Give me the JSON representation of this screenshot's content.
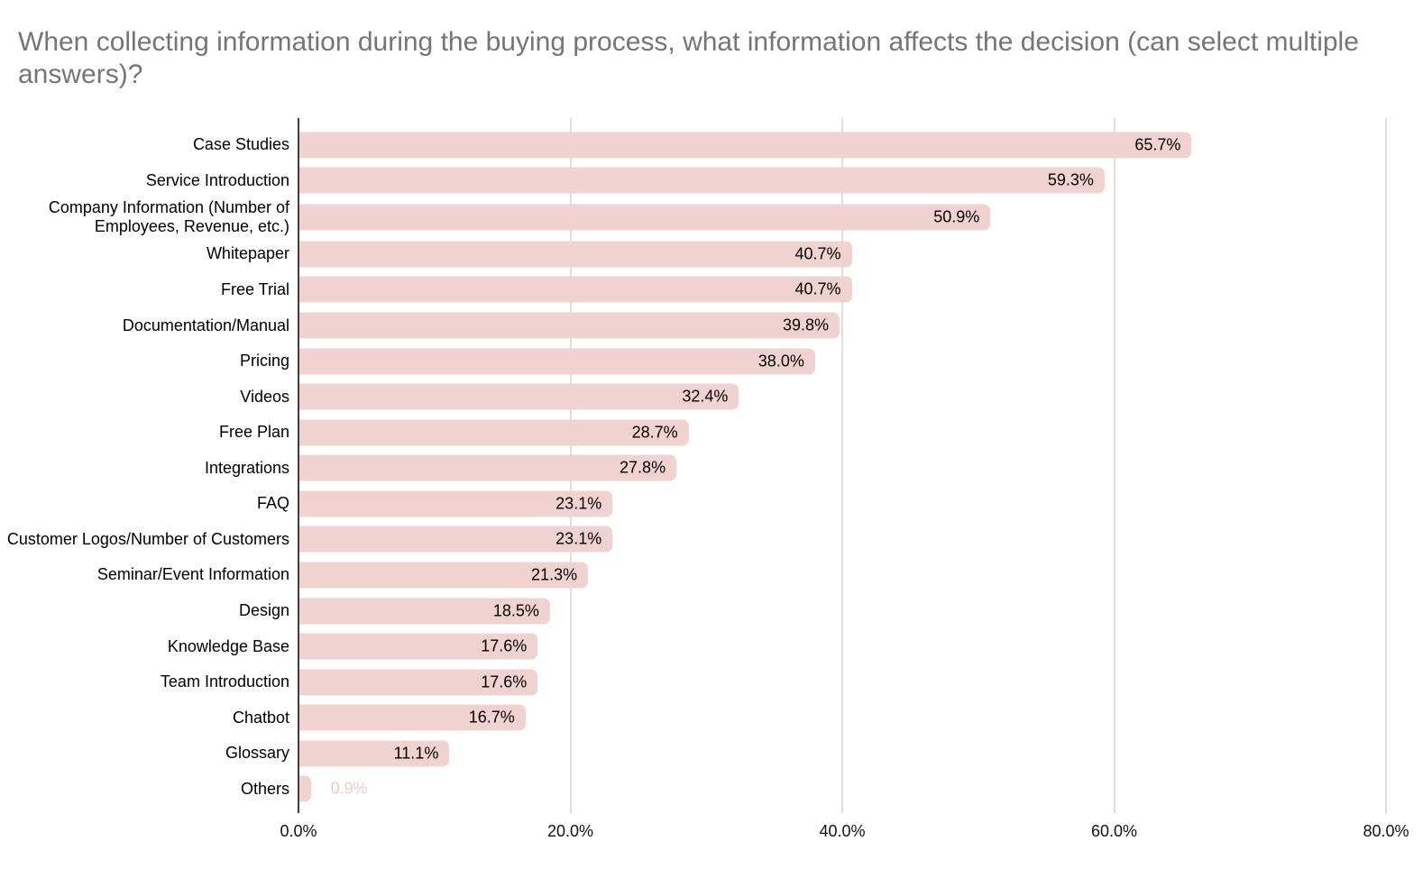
{
  "colors": {
    "bar": "#f0d3d0",
    "value_label_inside": "#000000",
    "value_label_outside": "#eccbc8",
    "title": "#757575",
    "gridline": "#dedede",
    "axis_line": "#3d3d3d",
    "tick_label": "#111111",
    "category_label": "#000000"
  },
  "chart_data": {
    "type": "bar",
    "orientation": "horizontal",
    "title": "When collecting information during the buying process, what information affects the decision (can select multiple answers)?",
    "categories": [
      "Case Studies",
      "Service Introduction",
      "Company Information (Number of Employees, Revenue, etc.)",
      "Whitepaper",
      "Free Trial",
      "Documentation/Manual",
      "Pricing",
      "Videos",
      "Free Plan",
      "Integrations",
      "FAQ",
      "Customer Logos/Number of Customers",
      "Seminar/Event Information",
      "Design",
      "Knowledge Base",
      "Team Introduction",
      "Chatbot",
      "Glossary",
      "Others"
    ],
    "values": [
      65.7,
      59.3,
      50.9,
      40.7,
      40.7,
      39.8,
      38.0,
      32.4,
      28.7,
      27.8,
      23.1,
      23.1,
      21.3,
      18.5,
      17.6,
      17.6,
      16.7,
      11.1,
      0.9
    ],
    "value_labels": [
      "65.7%",
      "59.3%",
      "50.9%",
      "40.7%",
      "40.7%",
      "39.8%",
      "38.0%",
      "32.4%",
      "28.7%",
      "27.8%",
      "23.1%",
      "23.1%",
      "21.3%",
      "18.5%",
      "17.6%",
      "17.6%",
      "16.7%",
      "11.1%",
      "0.9%"
    ],
    "xlabel": "",
    "ylabel": "",
    "xlim": [
      0,
      80
    ],
    "x_tick_values": [
      0,
      20,
      40,
      60,
      80
    ],
    "x_tick_labels": [
      "0.0%",
      "20.0%",
      "40.0%",
      "60.0%",
      "80.0%"
    ],
    "grid": true,
    "legend": "none"
  }
}
